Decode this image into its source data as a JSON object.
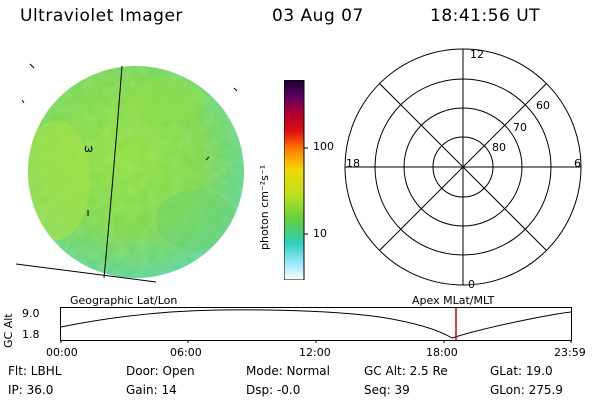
{
  "header": {
    "instrument": "Ultraviolet Imager",
    "date": "03 Aug 07",
    "time": "18:41:56 UT"
  },
  "colorbar": {
    "unit_label": "photon cm⁻²s⁻¹",
    "ticks": [
      "100",
      "10"
    ]
  },
  "polar_plot": {
    "mlt_labels": [
      "12",
      "18",
      "6",
      "0"
    ],
    "mlat_labels": [
      "60",
      "70",
      "80"
    ]
  },
  "image_overlay": {
    "marker": "ω"
  },
  "panel_labels": {
    "left": "Geographic Lat/Lon",
    "right": "Apex MLat/MLT"
  },
  "altitude_plot": {
    "ylabel": "GC Alt",
    "ymax": "9.0",
    "ymin": "1.8",
    "time_ticks": [
      "00:00",
      "06:00",
      "12:00",
      "18:00",
      "23:59"
    ],
    "current_time_marker_color": "#cc0000"
  },
  "info": {
    "row1": [
      "Flt: LBHL",
      "Door: Open",
      "Mode: Normal",
      "GC Alt: 2.5 Re",
      "GLat:  19.0"
    ],
    "row2": [
      "IP: 36.0",
      "Gain: 14",
      "Dsp:   -0.0",
      "Seq: 39",
      "GLon: 275.9"
    ]
  }
}
